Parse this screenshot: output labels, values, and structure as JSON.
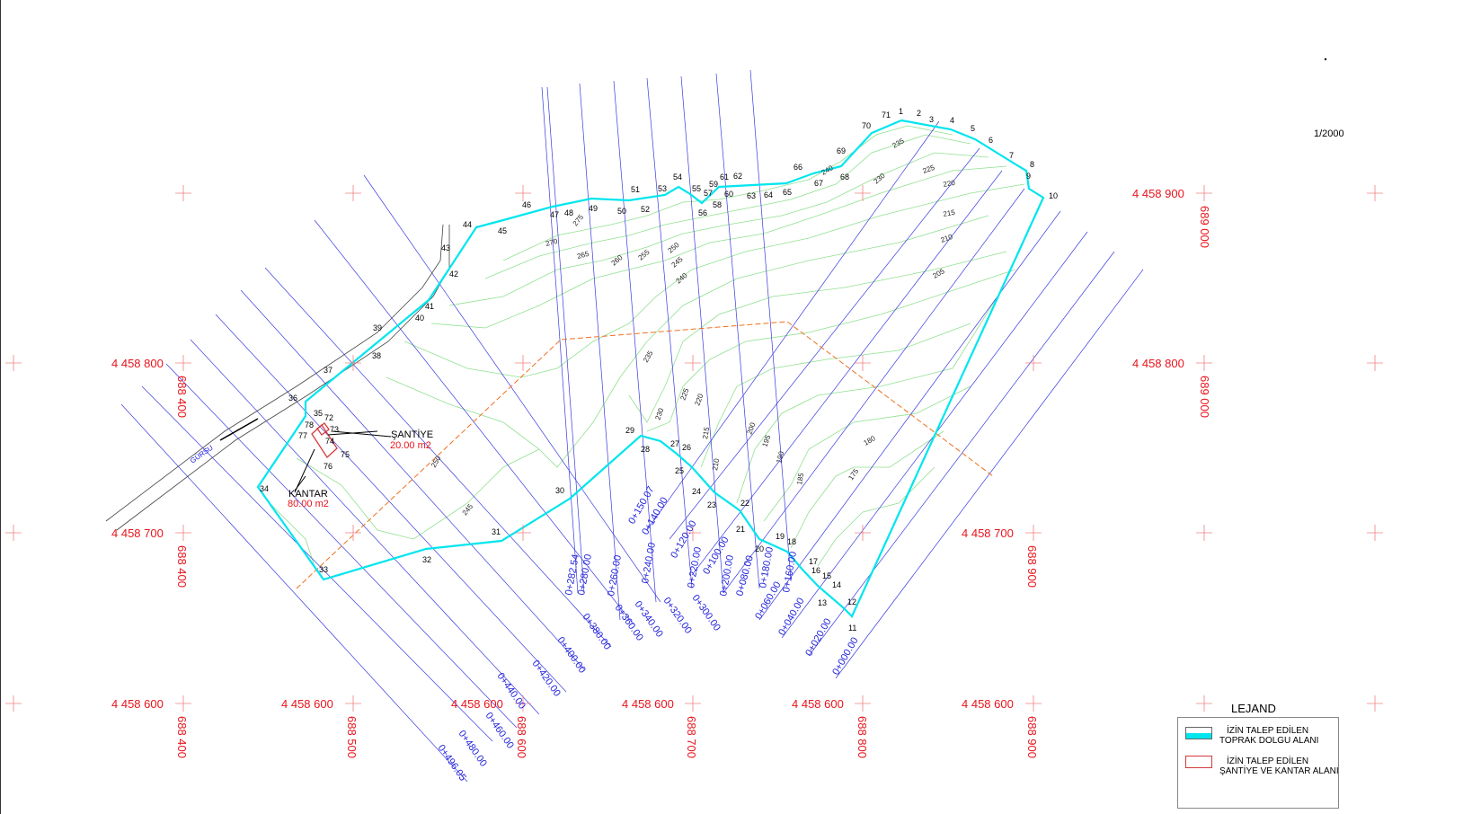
{
  "scale": "1/2000",
  "legend": {
    "title": "LEJAND",
    "items": [
      {
        "line1": "İZİN TALEP EDİLEN",
        "line2": "TOPRAK DOLGU ALANI",
        "color": "#00e5ee"
      },
      {
        "line1": "İZİN TALEP EDİLEN",
        "line2": "ŞANTİYE VE KANTAR ALANI",
        "color": "#d43a3a"
      }
    ]
  },
  "annotations": {
    "santiye": "ŞANTİYE",
    "santiye_area": "20.00 m2",
    "kantar": "KANTAR",
    "kantar_area": "80.00 m2",
    "road": "GÜRSU"
  },
  "colors": {
    "boundary": "#00e5ee",
    "grid": "#e8141c",
    "sections": "#2222dd",
    "contours": "#90e090",
    "axis": "#f07020"
  },
  "grid_labels": [
    "4 458 900",
    "689 000",
    "4 458 800",
    "688 400",
    "4 458 800",
    "689 000",
    "4 458 700",
    "688 400",
    "4 458 700",
    "688 900",
    "4 458 600",
    "688 400",
    "4 458 600",
    "688 500",
    "4 458 600",
    "688 600",
    "4 458 600",
    "688 700",
    "4 458 600",
    "688 800",
    "4 458 600",
    "688 900"
  ],
  "points": [
    "1",
    "2",
    "3",
    "4",
    "5",
    "6",
    "7",
    "8",
    "9",
    "10",
    "11",
    "12",
    "13",
    "14",
    "15",
    "16",
    "17",
    "18",
    "19",
    "20",
    "21",
    "22",
    "23",
    "24",
    "25",
    "26",
    "27",
    "28",
    "29",
    "30",
    "31",
    "32",
    "33",
    "34",
    "35",
    "36",
    "37",
    "38",
    "39",
    "40",
    "41",
    "42",
    "43",
    "44",
    "45",
    "46",
    "47",
    "48",
    "49",
    "50",
    "51",
    "52",
    "53",
    "54",
    "55",
    "56",
    "57",
    "58",
    "59",
    "60",
    "61",
    "62",
    "63",
    "64",
    "65",
    "66",
    "67",
    "68",
    "69",
    "70",
    "71",
    "72",
    "73",
    "74",
    "75",
    "76",
    "77",
    "78"
  ],
  "stations": [
    "0+000.00",
    "0+020.00",
    "0+040.00",
    "0+060.00",
    "0+080.00",
    "0+100.00",
    "0+120.00",
    "0+140.00",
    "0+150.07",
    "0+160.00",
    "0+180.00",
    "0+200.00",
    "0+220.00",
    "0+240.00",
    "0+260.00",
    "0+280.00",
    "0+282.54",
    "0+300.00",
    "0+320.00",
    "0+340.00",
    "0+360.00",
    "0+380.00",
    "0+400.00",
    "0+420.00",
    "0+440.00",
    "0+460.00",
    "0+480.00",
    "0+496.05"
  ],
  "contour_labels": [
    "275",
    "270",
    "265",
    "260",
    "255",
    "250",
    "245",
    "240",
    "235",
    "240",
    "230",
    "225",
    "220",
    "215",
    "210",
    "205",
    "235",
    "230",
    "225",
    "220",
    "215",
    "210",
    "200",
    "195",
    "190",
    "185",
    "180",
    "175",
    "250",
    "245"
  ]
}
